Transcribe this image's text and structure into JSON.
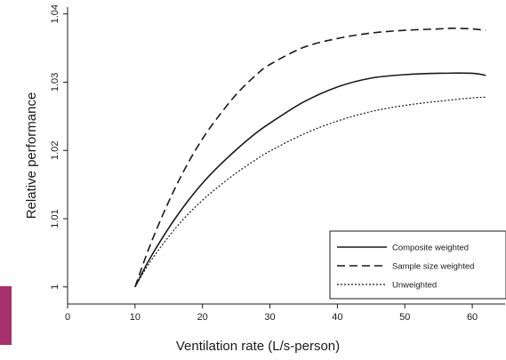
{
  "colors": {
    "accent": "#a7306a",
    "line": "#1a1a1a"
  },
  "chart_data": {
    "type": "line",
    "title": "",
    "xlabel": "Ventilation rate (L/s-person)",
    "ylabel": "Relative performance",
    "xlim": [
      0,
      65
    ],
    "ylim": [
      0.9975,
      1.041
    ],
    "xticks": [
      0,
      10,
      20,
      30,
      40,
      50,
      60
    ],
    "yticks": [
      1,
      1.01,
      1.02,
      1.03,
      1.04
    ],
    "xtick_labels": [
      "0",
      "10",
      "20",
      "30",
      "40",
      "50",
      "60"
    ],
    "ytick_labels": [
      "1",
      "1.01",
      "1.02",
      "1.03",
      "1.04"
    ],
    "grid": false,
    "legend_position": "bottom-right",
    "series": [
      {
        "name": "Composite weighted",
        "style": "solid",
        "x": [
          10,
          12,
          14,
          16,
          18,
          20,
          22,
          25,
          28,
          30,
          35,
          40,
          45,
          50,
          55,
          60,
          62
        ],
        "y": [
          1.0,
          1.0038,
          1.0071,
          1.0101,
          1.0128,
          1.0152,
          1.0173,
          1.0201,
          1.0226,
          1.024,
          1.0271,
          1.0293,
          1.0306,
          1.0311,
          1.0313,
          1.0313,
          1.031
        ]
      },
      {
        "name": "Sample size weighted",
        "style": "dashed",
        "x": [
          10,
          12,
          14,
          16,
          18,
          20,
          22,
          25,
          28,
          30,
          35,
          40,
          45,
          50,
          55,
          57,
          60,
          62
        ],
        "y": [
          1.0,
          1.0055,
          1.0103,
          1.0146,
          1.0184,
          1.0217,
          1.0245,
          1.0282,
          1.0311,
          1.0326,
          1.0351,
          1.0364,
          1.0372,
          1.0376,
          1.0378,
          1.0379,
          1.0378,
          1.0376
        ]
      },
      {
        "name": "Unweighted",
        "style": "dotted",
        "x": [
          10,
          12,
          14,
          16,
          18,
          20,
          22,
          25,
          28,
          30,
          35,
          40,
          45,
          50,
          55,
          60,
          62
        ],
        "y": [
          1.0,
          1.0033,
          1.0061,
          1.0086,
          1.0108,
          1.0127,
          1.0144,
          1.0167,
          1.0187,
          1.0199,
          1.0224,
          1.0243,
          1.0257,
          1.0266,
          1.0272,
          1.0277,
          1.0278
        ]
      }
    ]
  }
}
